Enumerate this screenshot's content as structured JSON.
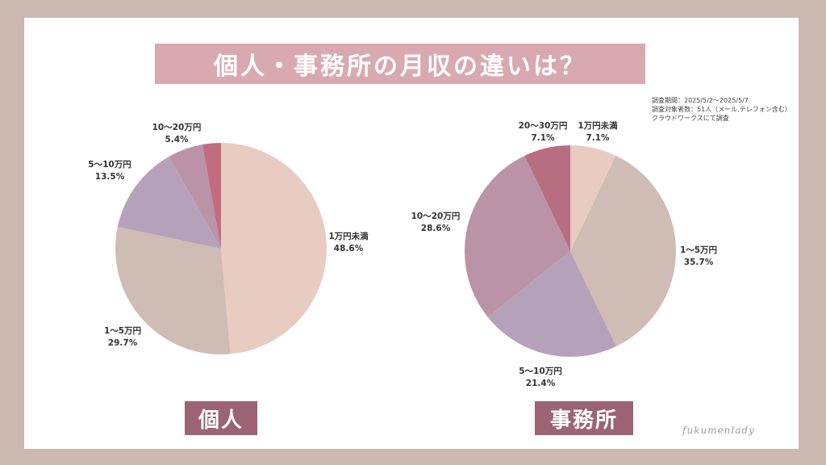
{
  "title": "個人・事務所の月収の違いは？",
  "survey_info": {
    "period": "調査期間：2025/5/2〜2025/5/7",
    "respondents": "調査対象者数：51人（メール,テレフォン含む）",
    "method": "クラウドワークスにて調査"
  },
  "watermark": "fukumenlady",
  "chart_data": [
    {
      "type": "pie",
      "title": "個人",
      "series": [
        {
          "label": "1万円未満",
          "value": 48.6,
          "value_label": "48.6%",
          "color": "#e8ccc2"
        },
        {
          "label": "1〜5万円",
          "value": 29.7,
          "value_label": "29.7%",
          "color": "#cfbcb5"
        },
        {
          "label": "5〜10万円",
          "value": 13.5,
          "value_label": "13.5%",
          "color": "#b5a2ba"
        },
        {
          "label": "10〜20万円",
          "value": 5.4,
          "value_label": "5.4%",
          "color": "#bb93a6"
        },
        {
          "label": "",
          "value": 2.8,
          "value_label": "",
          "color": "#c26c80"
        }
      ]
    },
    {
      "type": "pie",
      "title": "事務所",
      "series": [
        {
          "label": "1万円未満",
          "value": 7.1,
          "value_label": "7.1%",
          "color": "#e8ccc2"
        },
        {
          "label": "1〜5万円",
          "value": 35.7,
          "value_label": "35.7%",
          "color": "#cfbcb5"
        },
        {
          "label": "5〜10万円",
          "value": 21.4,
          "value_label": "21.4%",
          "color": "#b5a2ba"
        },
        {
          "label": "10〜20万円",
          "value": 28.6,
          "value_label": "28.6%",
          "color": "#bb93a6"
        },
        {
          "label": "20〜30万円",
          "value": 7.1,
          "value_label": "7.1%",
          "color": "#b86e81"
        }
      ]
    }
  ]
}
